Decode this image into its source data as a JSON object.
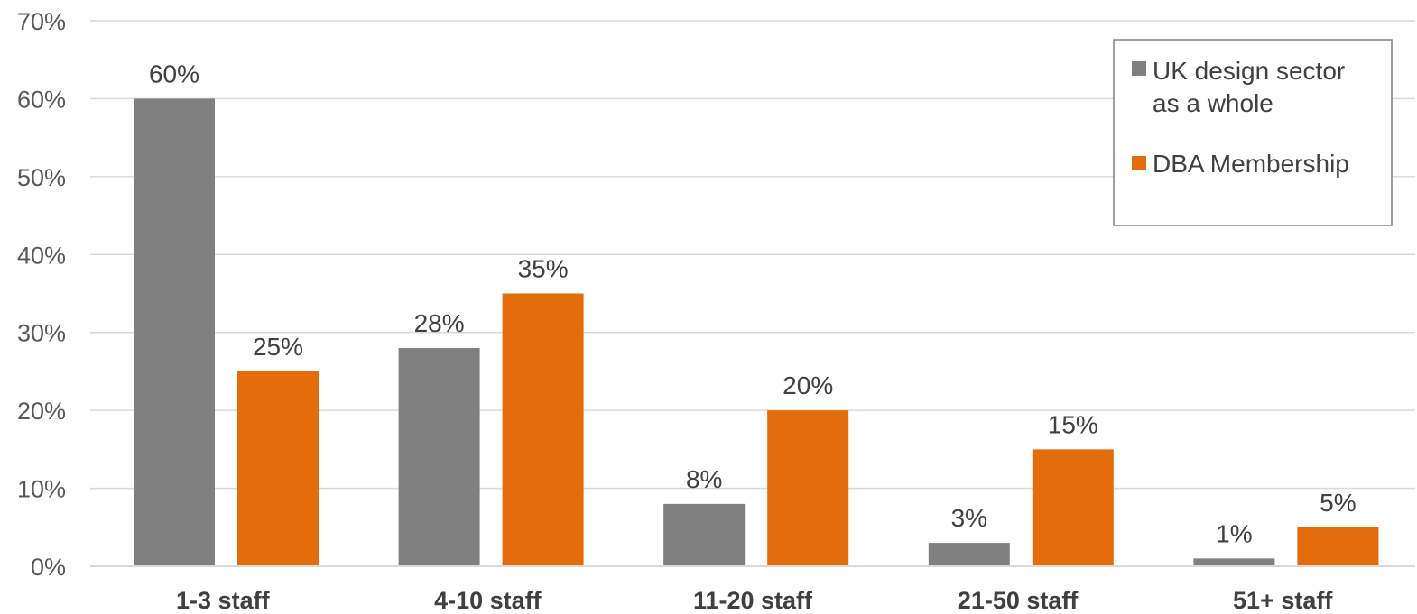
{
  "chart_data": {
    "type": "bar",
    "title": "",
    "xlabel": "",
    "ylabel": "",
    "categories": [
      "1-3 staff",
      "4-10 staff",
      "11-20 staff",
      "21-50 staff",
      "51+ staff"
    ],
    "series": [
      {
        "name": "UK design sector as a whole",
        "name_lines": [
          "UK design sector",
          "as a whole"
        ],
        "values": [
          60,
          28,
          8,
          3,
          1
        ],
        "color": "#808080"
      },
      {
        "name": "DBA Membership",
        "name_lines": [
          "DBA Membership"
        ],
        "values": [
          25,
          35,
          20,
          15,
          5
        ],
        "color": "#E46C0A"
      }
    ],
    "ylim": [
      0,
      70
    ],
    "yticks": [
      0,
      10,
      20,
      30,
      40,
      50,
      60,
      70
    ],
    "value_suffix": "%",
    "grid": true,
    "legend_position": "top-right"
  }
}
